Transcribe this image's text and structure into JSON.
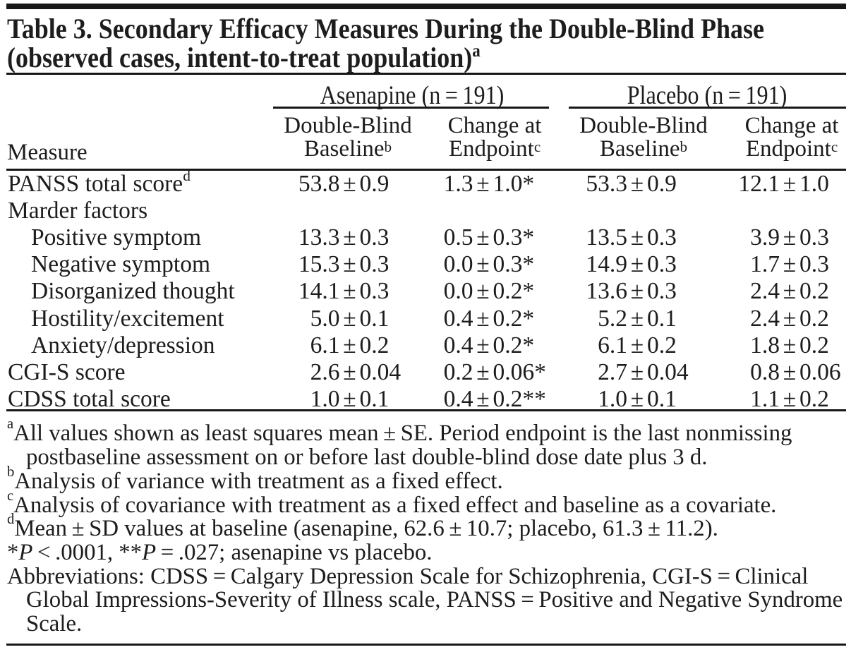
{
  "title": {
    "line1": "Table 3. Secondary Efficacy Measures During the Double-Blind Phase",
    "line2": "(observed cases, intent-to-treat population)",
    "sup": "a"
  },
  "table": {
    "measure_header": "Measure",
    "groups": [
      {
        "label": "Asenapine (n = 191)"
      },
      {
        "label": "Placebo (n = 191)"
      }
    ],
    "columns": [
      {
        "line1": "Double-Blind",
        "line2": "Baseline",
        "sup": "b"
      },
      {
        "line1": "Change at",
        "line2": "Endpoint",
        "sup": "c"
      },
      {
        "line1": "Double-Blind",
        "line2": "Baseline",
        "sup": "b"
      },
      {
        "line1": "Change at",
        "line2": "Endpoint",
        "sup": "c"
      }
    ],
    "rows": [
      {
        "label": "PANSS total score",
        "sup": "d",
        "indent": false,
        "values": [
          "53.8 ± 0.9",
          "1.3 ± 1.0*",
          "53.3 ± 0.9",
          "12.1 ± 1.0"
        ]
      },
      {
        "label": "Marder factors",
        "indent": false,
        "values": [
          "",
          "",
          "",
          ""
        ]
      },
      {
        "label": "Positive symptom",
        "indent": true,
        "values": [
          "13.3 ± 0.3",
          "0.5 ± 0.3*",
          "13.5 ± 0.3",
          "3.9 ± 0.3"
        ]
      },
      {
        "label": "Negative symptom",
        "indent": true,
        "values": [
          "15.3 ± 0.3",
          "0.0 ± 0.3*",
          "14.9 ± 0.3",
          "1.7 ± 0.3"
        ]
      },
      {
        "label": "Disorganized thought",
        "indent": true,
        "values": [
          "14.1 ± 0.3",
          "0.0 ± 0.2*",
          "13.6 ± 0.3",
          "2.4 ± 0.2"
        ]
      },
      {
        "label": "Hostility/excitement",
        "indent": true,
        "values": [
          "5.0 ± 0.1",
          "0.4 ± 0.2*",
          "5.2 ± 0.1",
          "2.4 ± 0.2"
        ]
      },
      {
        "label": "Anxiety/depression",
        "indent": true,
        "values": [
          "6.1 ± 0.2",
          "0.4 ± 0.2*",
          "6.1 ± 0.2",
          "1.8 ± 0.2"
        ]
      },
      {
        "label": "CGI-S score",
        "indent": false,
        "values": [
          "2.6 ± 0.04",
          "0.2 ± 0.06*",
          "2.7 ± 0.04",
          "0.8 ± 0.06"
        ]
      },
      {
        "label": "CDSS total score",
        "indent": false,
        "values": [
          "1.0 ± 0.1",
          "0.4 ± 0.2**",
          "1.0 ± 0.1",
          "1.1 ± 0.2"
        ]
      }
    ]
  },
  "footnotes": [
    {
      "lines": [
        {
          "sup": "a",
          "segments": [
            {
              "t": "All values shown as least squares mean ± SE. Period endpoint is the last nonmissing"
            }
          ]
        },
        {
          "indent": true,
          "segments": [
            {
              "t": "postbaseline assessment on or before last double-blind dose date plus 3 d."
            }
          ]
        }
      ]
    },
    {
      "lines": [
        {
          "sup": "b",
          "segments": [
            {
              "t": "Analysis of variance with treatment as a fixed effect."
            }
          ]
        }
      ]
    },
    {
      "lines": [
        {
          "sup": "c",
          "segments": [
            {
              "t": "Analysis of covariance with treatment as a fixed effect and baseline as a covariate."
            }
          ]
        }
      ]
    },
    {
      "lines": [
        {
          "sup": "d",
          "segments": [
            {
              "t": "Mean ± SD values at baseline (asenapine, 62.6 ± 10.7; placebo, 61.3 ± 11.2)."
            }
          ]
        }
      ]
    },
    {
      "lines": [
        {
          "segments": [
            {
              "t": "*"
            },
            {
              "t": "P",
              "i": true
            },
            {
              "t": " < .0001, **"
            },
            {
              "t": "P",
              "i": true
            },
            {
              "t": " = .027; asenapine vs placebo."
            }
          ]
        }
      ]
    },
    {
      "lines": [
        {
          "segments": [
            {
              "t": "Abbreviations: CDSS = Calgary Depression Scale for Schizophrenia, CGI-S = Clinical"
            }
          ]
        },
        {
          "indent": true,
          "segments": [
            {
              "t": "Global Impressions-Severity of Illness scale, PANSS = Positive and Negative Syndrome"
            }
          ]
        },
        {
          "indent": true,
          "segments": [
            {
              "t": "Scale."
            }
          ]
        }
      ]
    }
  ],
  "colors": {
    "ink": "#1d1d1d",
    "rule": "#171717",
    "background": "#ffffff"
  }
}
